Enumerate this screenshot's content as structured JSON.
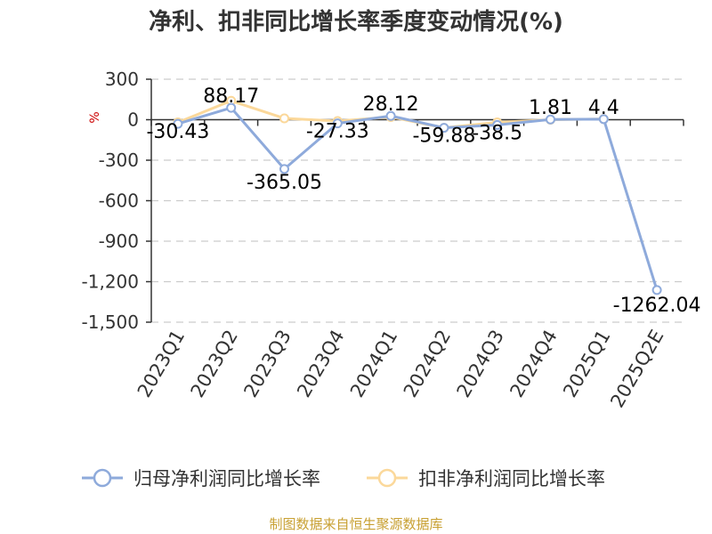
{
  "chart_data": {
    "type": "line",
    "title": "净利、扣非同比增长率季度变动情况(%)",
    "ylabel": "%",
    "categories": [
      "2023Q1",
      "2023Q2",
      "2023Q3",
      "2023Q4",
      "2024Q1",
      "2024Q2",
      "2024Q3",
      "2024Q4",
      "2025Q1",
      "2025Q2E"
    ],
    "y_ticks": [
      "300",
      "0",
      "-300",
      "-600",
      "-900",
      "-1,200",
      "-1,500"
    ],
    "ylim": [
      -1500,
      300
    ],
    "grid": true,
    "legend_position": "bottom",
    "series": [
      {
        "name": "归母净利润同比增长率",
        "color": "#8eaadb",
        "values": [
          -30.43,
          88.17,
          -365.05,
          -27.33,
          28.12,
          -59.88,
          -38.5,
          1.81,
          4.4,
          -1262.04
        ],
        "labels": [
          "-30.43",
          "88.17",
          "-365.05",
          "-27.33",
          "28.12",
          "-59.88",
          "-38.5",
          "1.81",
          "4.4",
          "-1262.04"
        ]
      },
      {
        "name": "扣非净利润同比增长率",
        "color": "#fbd89a",
        "values": [
          -20,
          140,
          10,
          -10,
          20,
          -60,
          -20,
          0,
          5,
          null
        ]
      }
    ]
  },
  "source_text": "制图数据来自恒生聚源数据库",
  "colors": {
    "unit": "#cc0000",
    "source": "#c8a032",
    "axis": "#333333",
    "grid": "#cccccc"
  }
}
